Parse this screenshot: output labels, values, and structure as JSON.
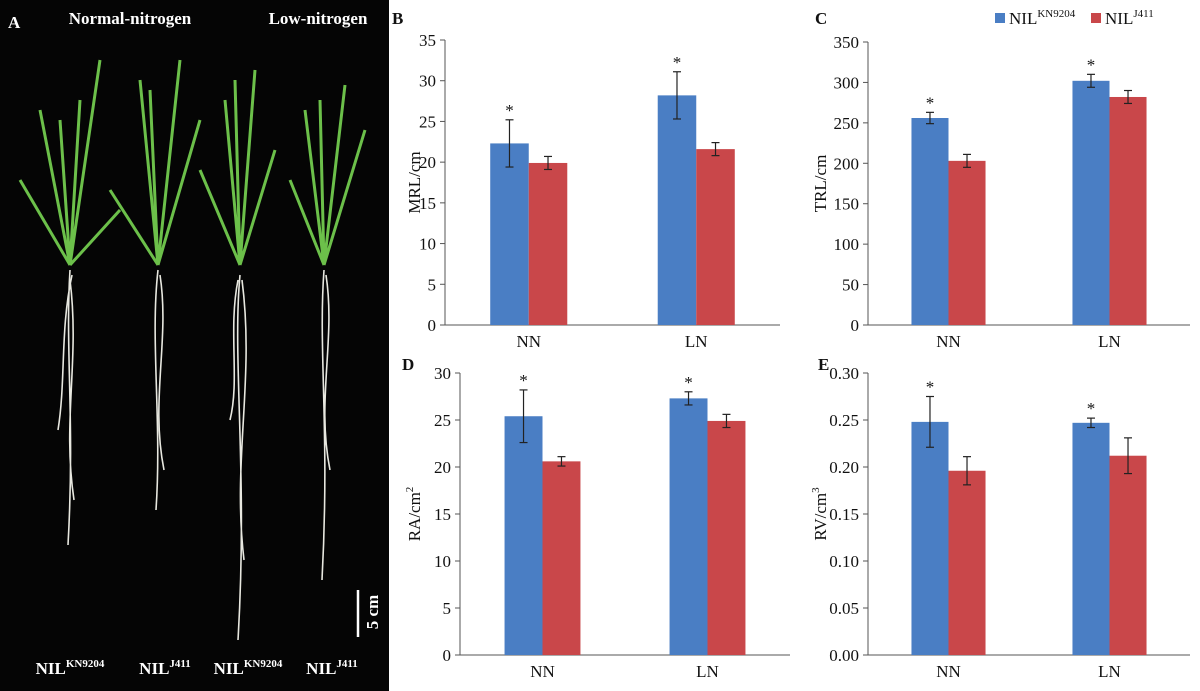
{
  "panel_a": {
    "letter": "A",
    "left_title": "Normal-nitrogen",
    "right_title": "Low-nitrogen",
    "scale_label": "5 cm",
    "plant_labels": [
      {
        "base": "NIL",
        "sup": "KN9204"
      },
      {
        "base": "NIL",
        "sup": "J411"
      },
      {
        "base": "NIL",
        "sup": "KN9204"
      },
      {
        "base": "NIL",
        "sup": "J411"
      }
    ]
  },
  "chart_data": [
    {
      "type": "bar",
      "panel_label": "B",
      "ylabel": "MRL/cm",
      "categories": [
        "NN",
        "LN"
      ],
      "series": [
        {
          "color": "#4a7ec4",
          "values": [
            22.3,
            28.2
          ],
          "errors": [
            2.9,
            2.9
          ],
          "value_marks": [
            "*",
            "*"
          ]
        },
        {
          "color": "#c9474a",
          "values": [
            19.9,
            21.6
          ],
          "errors": [
            0.8,
            0.8
          ]
        }
      ],
      "ylim": [
        0,
        35
      ],
      "yticks": [
        0,
        5,
        10,
        15,
        20,
        25,
        30,
        35
      ]
    },
    {
      "type": "bar",
      "panel_label": "C",
      "ylabel": "TRL/cm",
      "categories": [
        "NN",
        "LN"
      ],
      "series": [
        {
          "name": "NIL",
          "name_superscript": "KN9204",
          "color": "#4a7ec4",
          "values": [
            256,
            302
          ],
          "errors": [
            7,
            8
          ],
          "value_marks": [
            "*",
            "*"
          ]
        },
        {
          "name": "NIL",
          "name_superscript": "J411",
          "color": "#c9474a",
          "values": [
            203,
            282
          ],
          "errors": [
            8,
            8
          ]
        }
      ],
      "ylim": [
        0,
        350
      ],
      "yticks": [
        0,
        50,
        100,
        150,
        200,
        250,
        300,
        350
      ],
      "legend": "top-right"
    },
    {
      "type": "bar",
      "panel_label": "D",
      "ylabel": "RA/cm",
      "ylabel_superscript": "2",
      "categories": [
        "NN",
        "LN"
      ],
      "series": [
        {
          "color": "#4a7ec4",
          "values": [
            25.4,
            27.3
          ],
          "errors": [
            2.8,
            0.7
          ],
          "value_marks": [
            "*",
            "*"
          ]
        },
        {
          "color": "#c9474a",
          "values": [
            20.6,
            24.9
          ],
          "errors": [
            0.5,
            0.7
          ]
        }
      ],
      "ylim": [
        0,
        30
      ],
      "yticks": [
        0,
        5,
        10,
        15,
        20,
        25,
        30
      ]
    },
    {
      "type": "bar",
      "panel_label": "E",
      "ylabel": "RV/cm",
      "ylabel_superscript": "3",
      "categories": [
        "NN",
        "LN"
      ],
      "series": [
        {
          "color": "#4a7ec4",
          "values": [
            0.248,
            0.247
          ],
          "errors": [
            0.027,
            0.005
          ],
          "value_marks": [
            "*",
            "*"
          ]
        },
        {
          "color": "#c9474a",
          "values": [
            0.196,
            0.212
          ],
          "errors": [
            0.015,
            0.019
          ]
        }
      ],
      "ylim": [
        0,
        0.3
      ],
      "yticks": [
        {
          "value": 0,
          "label": "0.00"
        },
        {
          "value": 0.05,
          "label": "0.05"
        },
        {
          "value": 0.1,
          "label": "0.10"
        },
        {
          "value": 0.15,
          "label": "0.15"
        },
        {
          "value": 0.2,
          "label": "0.20"
        },
        {
          "value": 0.25,
          "label": "0.25"
        },
        {
          "value": 0.3,
          "label": "0.30"
        }
      ]
    }
  ]
}
